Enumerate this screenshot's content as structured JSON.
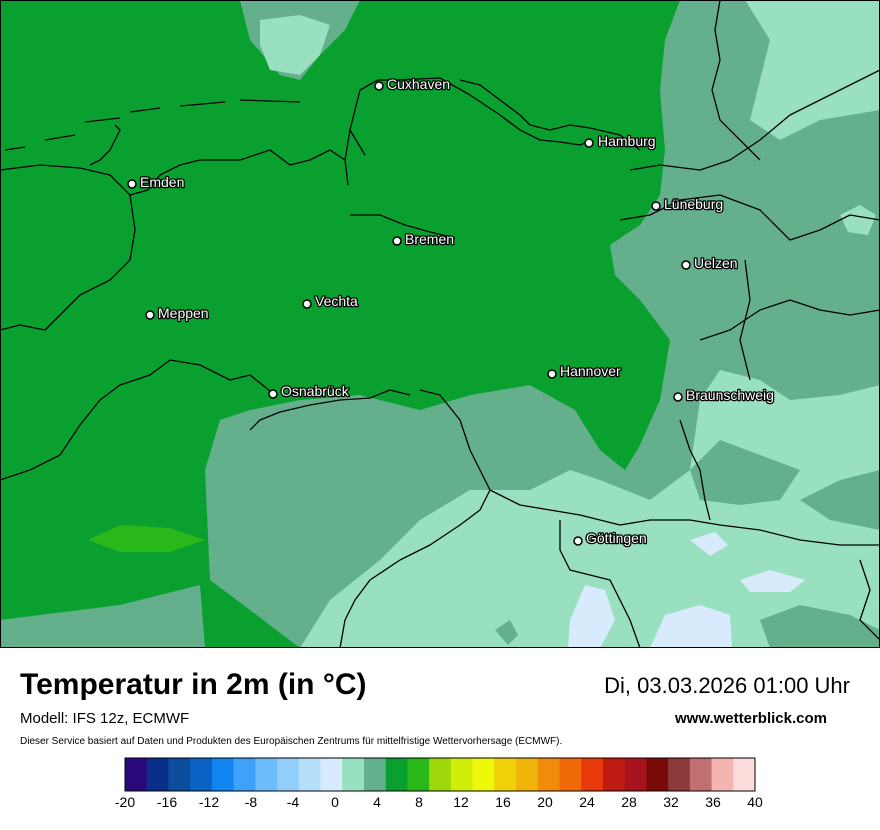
{
  "map": {
    "cities": [
      {
        "name": "Cuxhaven"
      },
      {
        "name": "Hamburg"
      },
      {
        "name": "Emden"
      },
      {
        "name": "Lüneburg"
      },
      {
        "name": "Bremen"
      },
      {
        "name": "Uelzen"
      },
      {
        "name": "Vechta"
      },
      {
        "name": "Meppen"
      },
      {
        "name": "Hannover"
      },
      {
        "name": "Osnabrück"
      },
      {
        "name": "Braunschweig"
      },
      {
        "name": "Göttingen"
      }
    ]
  },
  "footer": {
    "title": "Temperatur in 2m (in °C)",
    "datetime": "Di, 03.03.2026 01:00 Uhr",
    "model": "Modell: IFS 12z, ECMWF",
    "website": "www.wetterblick.com",
    "disclaimer": "Dieser Service basiert auf Daten und Produkten des Europäischen Zentrums für mittelfristige Wettervorhersage (ECMWF)."
  },
  "legend": {
    "ticks": [
      "-20",
      "-16",
      "-12",
      "-8",
      "-4",
      "0",
      "4",
      "8",
      "12",
      "16",
      "20",
      "24",
      "28",
      "32",
      "36",
      "40"
    ],
    "colors": [
      "#2a0a7a",
      "#0a2f8a",
      "#0c4d9c",
      "#0a63c4",
      "#1186f0",
      "#3ea2fa",
      "#6cbcfa",
      "#92cefa",
      "#b7defb",
      "#d8ebfd",
      "#98e0c0",
      "#64b08d",
      "#0aa02f",
      "#28b81a",
      "#9fd80a",
      "#cfee0a",
      "#f0f80a",
      "#f0d20a",
      "#f0b40a",
      "#f08c0a",
      "#f06a0a",
      "#e83a0a",
      "#bf1a12",
      "#a8141e",
      "#7a0a0a",
      "#8c3a3a",
      "#c07070",
      "#f4b4b0",
      "#fddcdc"
    ]
  },
  "colors": {
    "land_warm": "#0aa02f",
    "mid": "#64b08d",
    "cool": "#98e0c0",
    "cold": "#d8ebfd",
    "warm_spot": "#28b81a"
  }
}
